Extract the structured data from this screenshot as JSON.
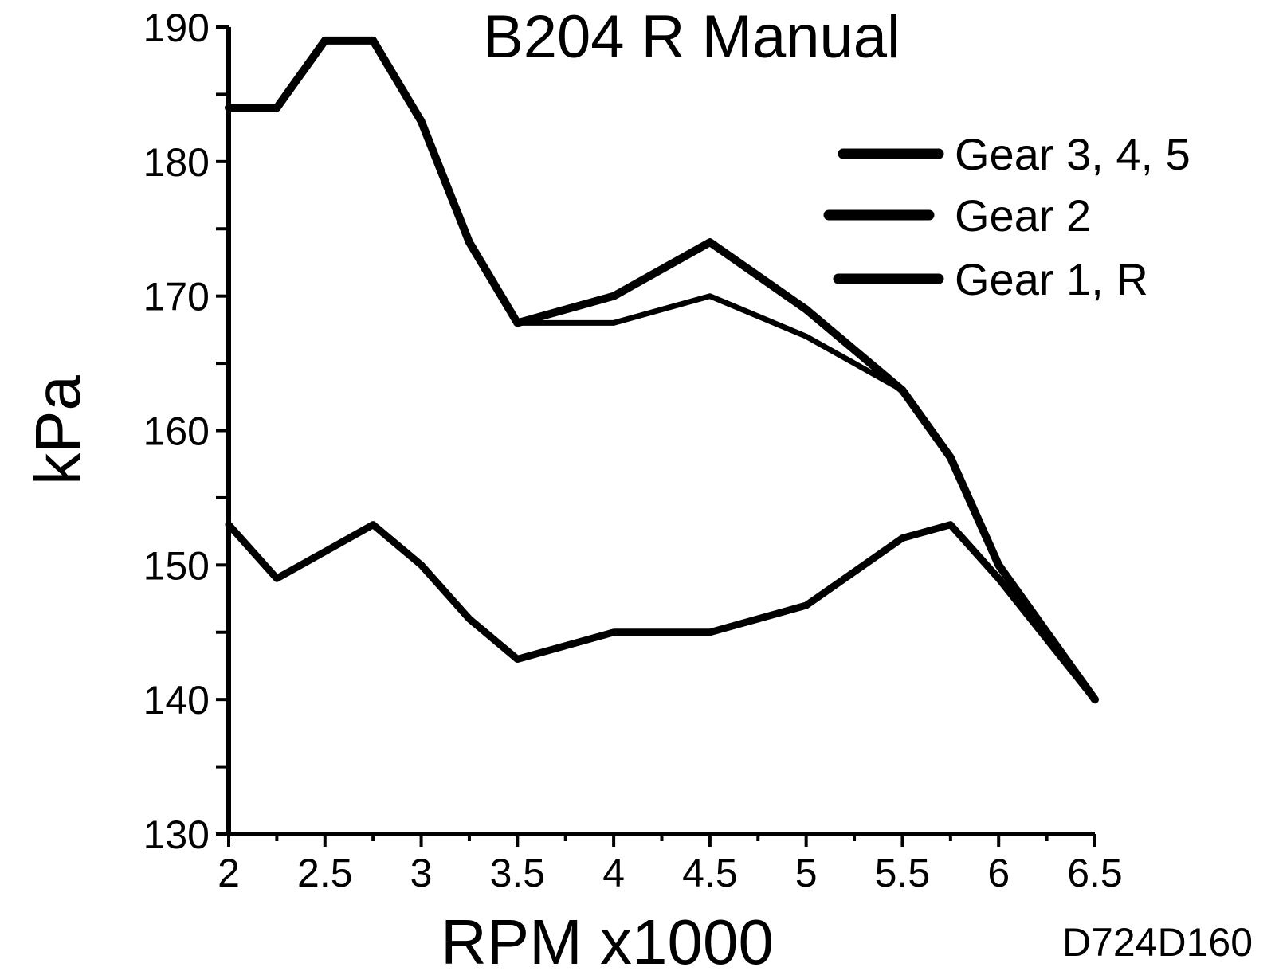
{
  "chart_data": {
    "type": "line",
    "title": "B204 R Manual",
    "xlabel": "RPM x1000",
    "ylabel": "kPa",
    "xlim": [
      2,
      6.5
    ],
    "ylim": [
      130,
      190
    ],
    "x_ticks": [
      "2",
      "2.5",
      "3",
      "3.5",
      "4",
      "4.5",
      "5",
      "5.5",
      "6",
      "6.5"
    ],
    "y_ticks": [
      "130",
      "140",
      "150",
      "160",
      "170",
      "180",
      "190"
    ],
    "grid": false,
    "legend_position": "top-right",
    "code": "D724D160",
    "line_color": "#000000",
    "series": [
      {
        "name": "Gear 3, 4, 5",
        "x": [
          2,
          2.25,
          2.5,
          2.75,
          3,
          3.25,
          3.5,
          4,
          4.5,
          5,
          5.5,
          5.75,
          6,
          6.5
        ],
        "y": [
          184,
          184,
          189,
          189,
          183,
          174,
          168,
          168,
          170,
          167,
          163,
          158,
          150,
          140
        ]
      },
      {
        "name": "Gear 2",
        "x": [
          2,
          2.25,
          2.5,
          2.75,
          3,
          3.25,
          3.5,
          4,
          4.5,
          5,
          5.5,
          5.75,
          6,
          6.5
        ],
        "y": [
          184,
          184,
          189,
          189,
          183,
          174,
          168,
          170,
          174,
          169,
          163,
          158,
          150,
          140
        ]
      },
      {
        "name": "Gear 1, R",
        "x": [
          2,
          2.25,
          2.5,
          2.75,
          3,
          3.25,
          3.5,
          4,
          4.5,
          5,
          5.5,
          5.75,
          6,
          6.5
        ],
        "y": [
          153,
          149,
          151,
          153,
          150,
          146,
          143,
          145,
          145,
          147,
          152,
          153,
          149,
          140
        ]
      }
    ]
  }
}
